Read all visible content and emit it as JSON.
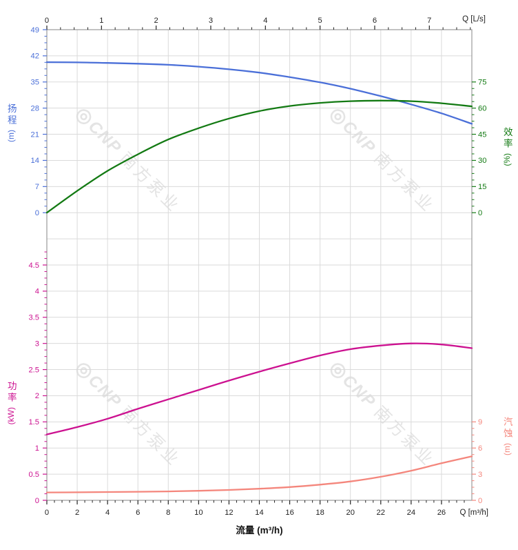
{
  "page": {
    "background": "#ffffff"
  },
  "watermark": {
    "logo_char": "◎",
    "brand": "CNP",
    "cjk": "南方泵业",
    "color": "#e4e4e4"
  },
  "chart_data": {
    "type": "line",
    "title": "",
    "x_axis_bottom": {
      "axis_label": "流量 (m³/h)",
      "corner_label": "Q [m³/h]",
      "min": 0,
      "max": 28,
      "major_ticks": [
        0,
        2,
        4,
        6,
        8,
        10,
        12,
        14,
        16,
        18,
        20,
        22,
        24,
        26
      ],
      "minor_step": 0.5,
      "color": "#222222"
    },
    "x_axis_top": {
      "corner_label": "Q [L/s]",
      "min": 0,
      "max": 7.78,
      "major_ticks": [
        0,
        1,
        2,
        3,
        4,
        5,
        6,
        7
      ],
      "minor_step": 0.25,
      "unit_to_m3h": 3.6,
      "color": "#222222"
    },
    "grid": {
      "color": "#dadada",
      "row_count": 18,
      "x_major_step": 2,
      "frame_color": "#999999"
    },
    "series": [
      {
        "id": "head",
        "label": "扬程",
        "unit": "(m)",
        "color": "#4a6fd8",
        "y_axis": {
          "side": "left",
          "min": 0,
          "max": 49,
          "major_ticks": [
            0,
            7,
            14,
            21,
            28,
            35,
            42,
            49
          ],
          "minor_step": 1.75,
          "minor_max": 49,
          "row_of_min": 7,
          "row_of_max": 0
        },
        "points": {
          "x": [
            0,
            2,
            4,
            6,
            8,
            10,
            12,
            14,
            16,
            18,
            20,
            22,
            24,
            26,
            28
          ],
          "y": [
            40.3,
            40.25,
            40.1,
            39.9,
            39.6,
            39.1,
            38.4,
            37.5,
            36.3,
            34.9,
            33.2,
            31.2,
            29.0,
            26.6,
            23.8
          ]
        }
      },
      {
        "id": "efficiency",
        "label": "效率",
        "unit": "(%)",
        "color": "#137a13",
        "y_axis": {
          "side": "right",
          "min": 0,
          "max": 105,
          "major_ticks": [
            0,
            15,
            30,
            45,
            60,
            75
          ],
          "minor_step": 3.75,
          "minor_max": 75,
          "row_of_min": 7,
          "row_of_max": 0
        },
        "points": {
          "x": [
            0,
            2,
            4,
            6,
            8,
            10,
            12,
            14,
            16,
            18,
            20,
            22,
            24,
            26,
            28
          ],
          "y": [
            0,
            12.5,
            24,
            33.5,
            42,
            48.5,
            54,
            58.3,
            61.2,
            63.0,
            64.0,
            64.3,
            64.0,
            62.8,
            61.0
          ]
        }
      },
      {
        "id": "power",
        "label": "功率",
        "unit": "(kW)",
        "color": "#cc1190",
        "y_axis": {
          "side": "left",
          "min": 0,
          "max": 5,
          "major_ticks": [
            0,
            0.5,
            1,
            1.5,
            2,
            2.5,
            3,
            3.5,
            4,
            4.5
          ],
          "minor_step": 0.125,
          "minor_max": 4.75,
          "row_of_min": 18,
          "row_of_max": 8
        },
        "points": {
          "x": [
            0,
            2,
            4,
            6,
            8,
            10,
            12,
            14,
            16,
            18,
            20,
            22,
            24,
            26,
            28
          ],
          "y": [
            1.26,
            1.4,
            1.56,
            1.75,
            1.93,
            2.11,
            2.29,
            2.46,
            2.62,
            2.77,
            2.89,
            2.96,
            3.0,
            2.98,
            2.91
          ]
        }
      },
      {
        "id": "npsh",
        "label": "汽蚀",
        "unit": "(m)",
        "color": "#f4867c",
        "y_axis": {
          "side": "right",
          "min": 0,
          "max": 9,
          "major_ticks": [
            0,
            3,
            6,
            9
          ],
          "minor_step": 0.75,
          "minor_max": 9,
          "row_of_min": 18,
          "row_of_max": 15
        },
        "points": {
          "x": [
            0,
            2,
            4,
            6,
            8,
            10,
            12,
            14,
            16,
            18,
            20,
            22,
            24,
            26,
            28
          ],
          "y": [
            0.9,
            0.92,
            0.95,
            0.98,
            1.02,
            1.09,
            1.19,
            1.33,
            1.52,
            1.8,
            2.16,
            2.7,
            3.4,
            4.25,
            5.05
          ]
        }
      }
    ]
  }
}
